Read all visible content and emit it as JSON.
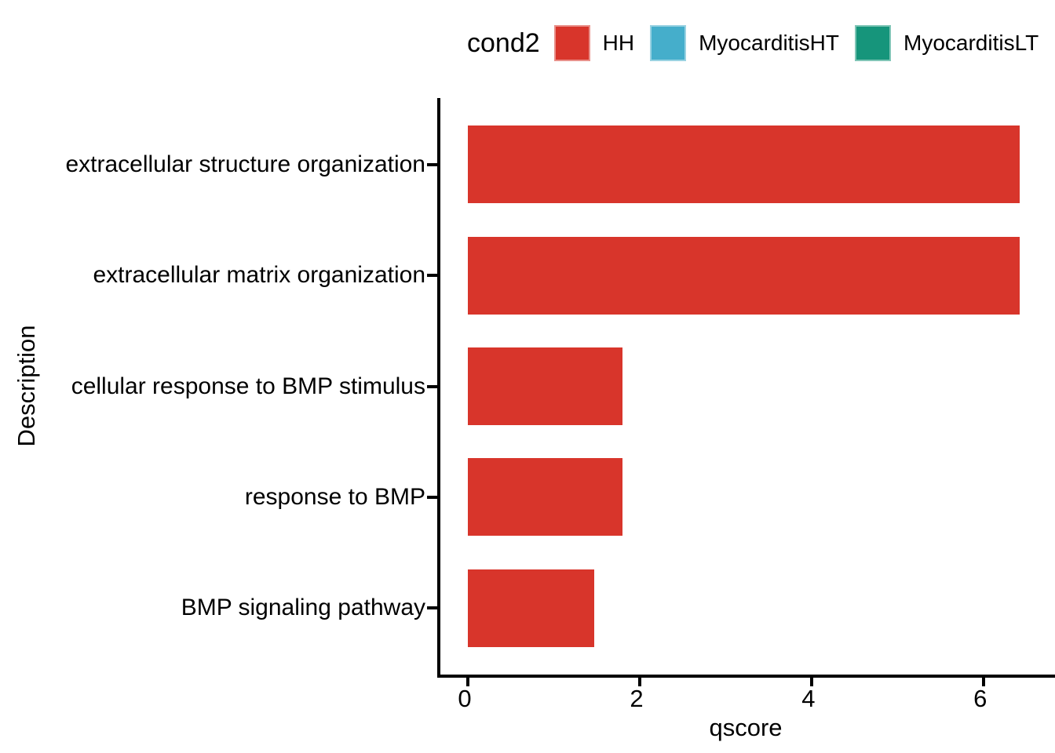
{
  "legend": {
    "title": "cond2",
    "items": [
      {
        "label": "HH",
        "color": "#D8352B"
      },
      {
        "label": "MyocarditisHT",
        "color": "#45AECB"
      },
      {
        "label": "MyocarditisLT",
        "color": "#16957B"
      }
    ]
  },
  "chart_data": {
    "type": "bar",
    "orientation": "horizontal",
    "title": "",
    "xlabel": "qscore",
    "ylabel": "Description",
    "categories": [
      "extracellular structure organization",
      "extracellular matrix organization",
      "cellular response to BMP stimulus",
      "response to BMP",
      "BMP signaling pathway"
    ],
    "series": [
      {
        "name": "HH",
        "color": "#D8352B",
        "values": [
          6.42,
          6.42,
          1.8,
          1.8,
          1.47
        ]
      }
    ],
    "x_ticks": [
      0,
      2,
      4,
      6
    ],
    "xlim": [
      -0.32,
      6.87
    ],
    "grid": false,
    "legend_title": "cond2",
    "legend_position": "top",
    "bar_band_fraction": 0.7
  }
}
